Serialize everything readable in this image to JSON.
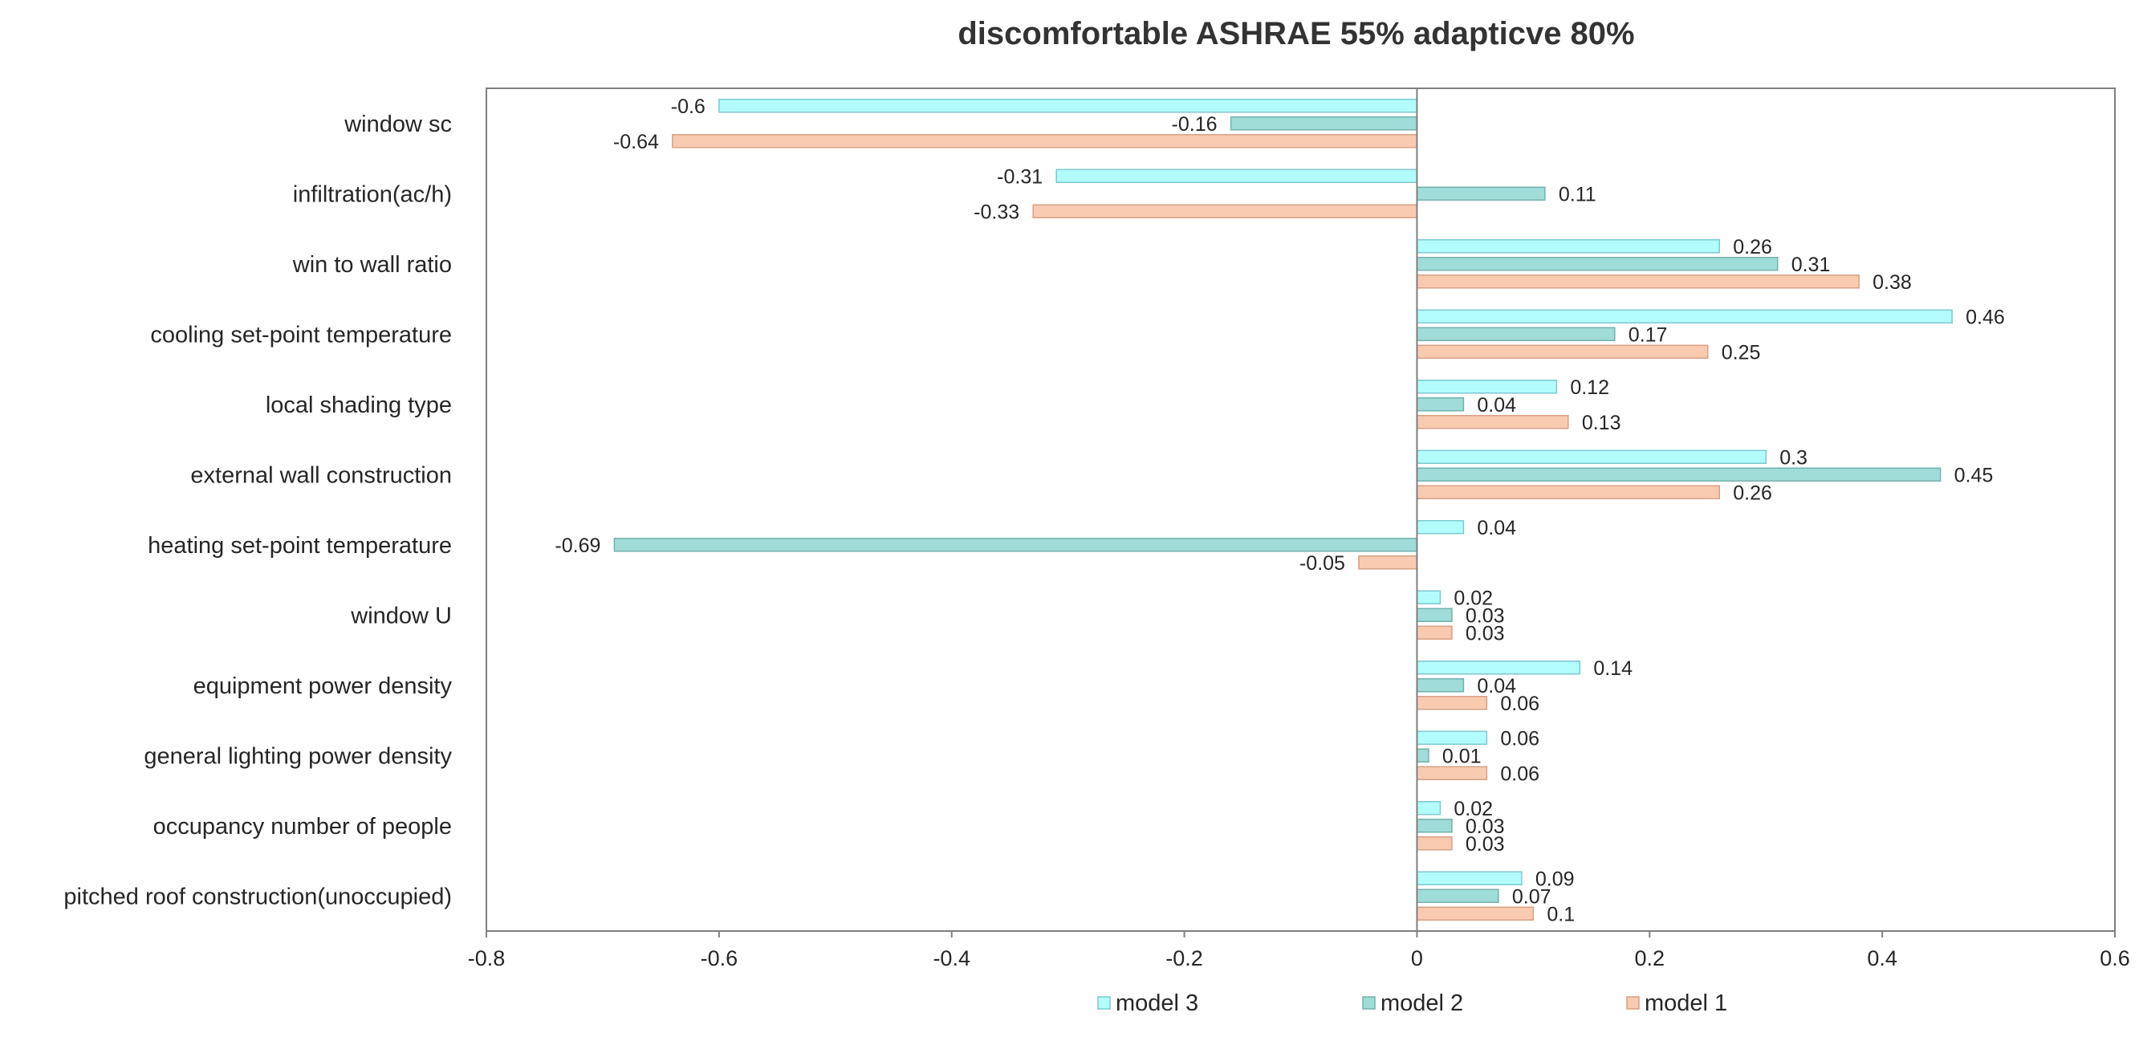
{
  "chart_data": {
    "type": "bar",
    "orientation": "horizontal",
    "title": "discomfortable ASHRAE 55% adapticve 80%",
    "xlabel": "",
    "ylabel": "",
    "xlim": [
      -0.8,
      0.6
    ],
    "x_ticks": [
      -0.8,
      -0.6,
      -0.4,
      -0.2,
      0,
      0.2,
      0.4,
      0.6
    ],
    "x_tick_labels": [
      "-0.8",
      "-0.6",
      "-0.4",
      "-0.2",
      "0",
      "0.2",
      "0.4",
      "0.6"
    ],
    "grid": false,
    "legend_position": "bottom",
    "categories": [
      "window sc",
      "infiltration(ac/h)",
      "win to wall ratio",
      "cooling set-point temperature",
      "local shading type ",
      "external wall construction",
      "heating set-point temperature",
      "window U",
      "equipment power density",
      "general lighting power density",
      "occupancy number of people",
      "pitched roof construction(unoccupied)"
    ],
    "series": [
      {
        "name": "model 3",
        "color": "#B3FCFC",
        "stroke": "#7EC8CF",
        "values": [
          -0.6,
          -0.31,
          0.26,
          0.46,
          0.12,
          0.3,
          0.04,
          0.02,
          0.14,
          0.06,
          0.02,
          0.09
        ],
        "labels": [
          "-0.6",
          "-0.31",
          "0.26",
          "0.46",
          "0.12",
          "0.3",
          "0.04",
          "0.02",
          "0.14",
          "0.06",
          "0.02",
          "0.09"
        ]
      },
      {
        "name": "model 2",
        "color": "#A0DCD8",
        "stroke": "#72B2AE",
        "values": [
          -0.16,
          0.11,
          0.31,
          0.17,
          0.04,
          0.45,
          -0.69,
          0.03,
          0.04,
          0.01,
          0.03,
          0.07
        ],
        "labels": [
          "-0.16",
          "0.11",
          "0.31",
          "0.17",
          "0.04",
          "0.45",
          "-0.69",
          "0.03",
          "0.04",
          "0.01",
          "0.03",
          "0.07"
        ]
      },
      {
        "name": "model 1",
        "color": "#F8CBB0",
        "stroke": "#D8A083",
        "values": [
          -0.64,
          -0.33,
          0.38,
          0.25,
          0.13,
          0.26,
          -0.05,
          0.03,
          0.06,
          0.06,
          0.03,
          0.1
        ],
        "labels": [
          "-0.64",
          "-0.33",
          "0.38",
          "0.25",
          "0.13",
          "0.26",
          "-0.05",
          "0.03",
          "0.06",
          "0.06",
          "0.03",
          "0.1"
        ]
      }
    ],
    "legend_order": [
      "model 3",
      "model 2",
      "model 1"
    ]
  }
}
